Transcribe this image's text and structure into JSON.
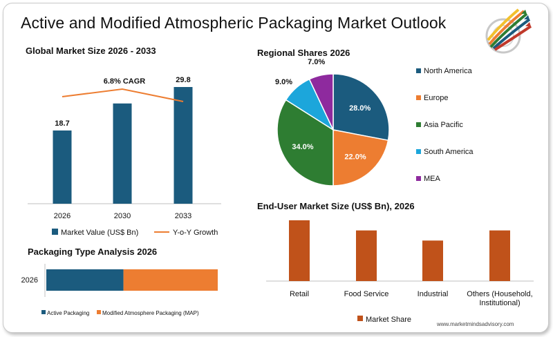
{
  "title": "Active and Modified Atmospheric Packaging Market Outlook",
  "website": "www.marketmindsadvisory.com",
  "logo_icon": "colorful-arrows-target-icon",
  "colors": {
    "navy": "#1b5b7e",
    "orange": "#ed7d31",
    "green": "#2e7d32",
    "sky": "#1ca6db",
    "purple": "#8e2a9e",
    "rust": "#c0521a"
  },
  "chart_data": [
    {
      "type": "bar",
      "title": "Global Market Size 2026 - 2033",
      "categories": [
        "2026",
        "2030",
        "2033"
      ],
      "series": [
        {
          "name": "Market Value (US$ Bn)",
          "values": [
            18.7,
            null,
            29.8
          ],
          "data_labels": [
            "18.7",
            "",
            "29.8"
          ]
        },
        {
          "name": "Y-o-Y Growth",
          "type": "line"
        }
      ],
      "annotation": "6.8% CAGR",
      "legend_position": "bottom"
    },
    {
      "type": "pie",
      "title": "Regional Shares 2026",
      "categories": [
        "North America",
        "Europe",
        "Asia Pacific",
        "South America",
        "MEA"
      ],
      "values": [
        28.0,
        22.0,
        34.0,
        9.0,
        7.0
      ],
      "labels": [
        "28.0%",
        "22.0%",
        "34.0%",
        "9.0%",
        "7.0%"
      ],
      "legend_position": "right"
    },
    {
      "type": "bar",
      "orientation": "horizontal-stacked",
      "title": "Packaging Type Analysis 2026",
      "categories": [
        "2026"
      ],
      "series": [
        {
          "name": "Active Packaging",
          "values": [
            45
          ]
        },
        {
          "name": "Modified Atmosphere Packaging (MAP)",
          "values": [
            55
          ]
        }
      ],
      "legend_position": "bottom"
    },
    {
      "type": "bar",
      "title": "End-User Market Size (US$ Bn), 2026",
      "categories": [
        "Retail",
        "Food Service",
        "Industrial",
        "Others (Household, Institutional)"
      ],
      "series": [
        {
          "name": "Market Share",
          "values": [
            30,
            25,
            20,
            25
          ]
        }
      ],
      "legend_position": "bottom"
    }
  ]
}
